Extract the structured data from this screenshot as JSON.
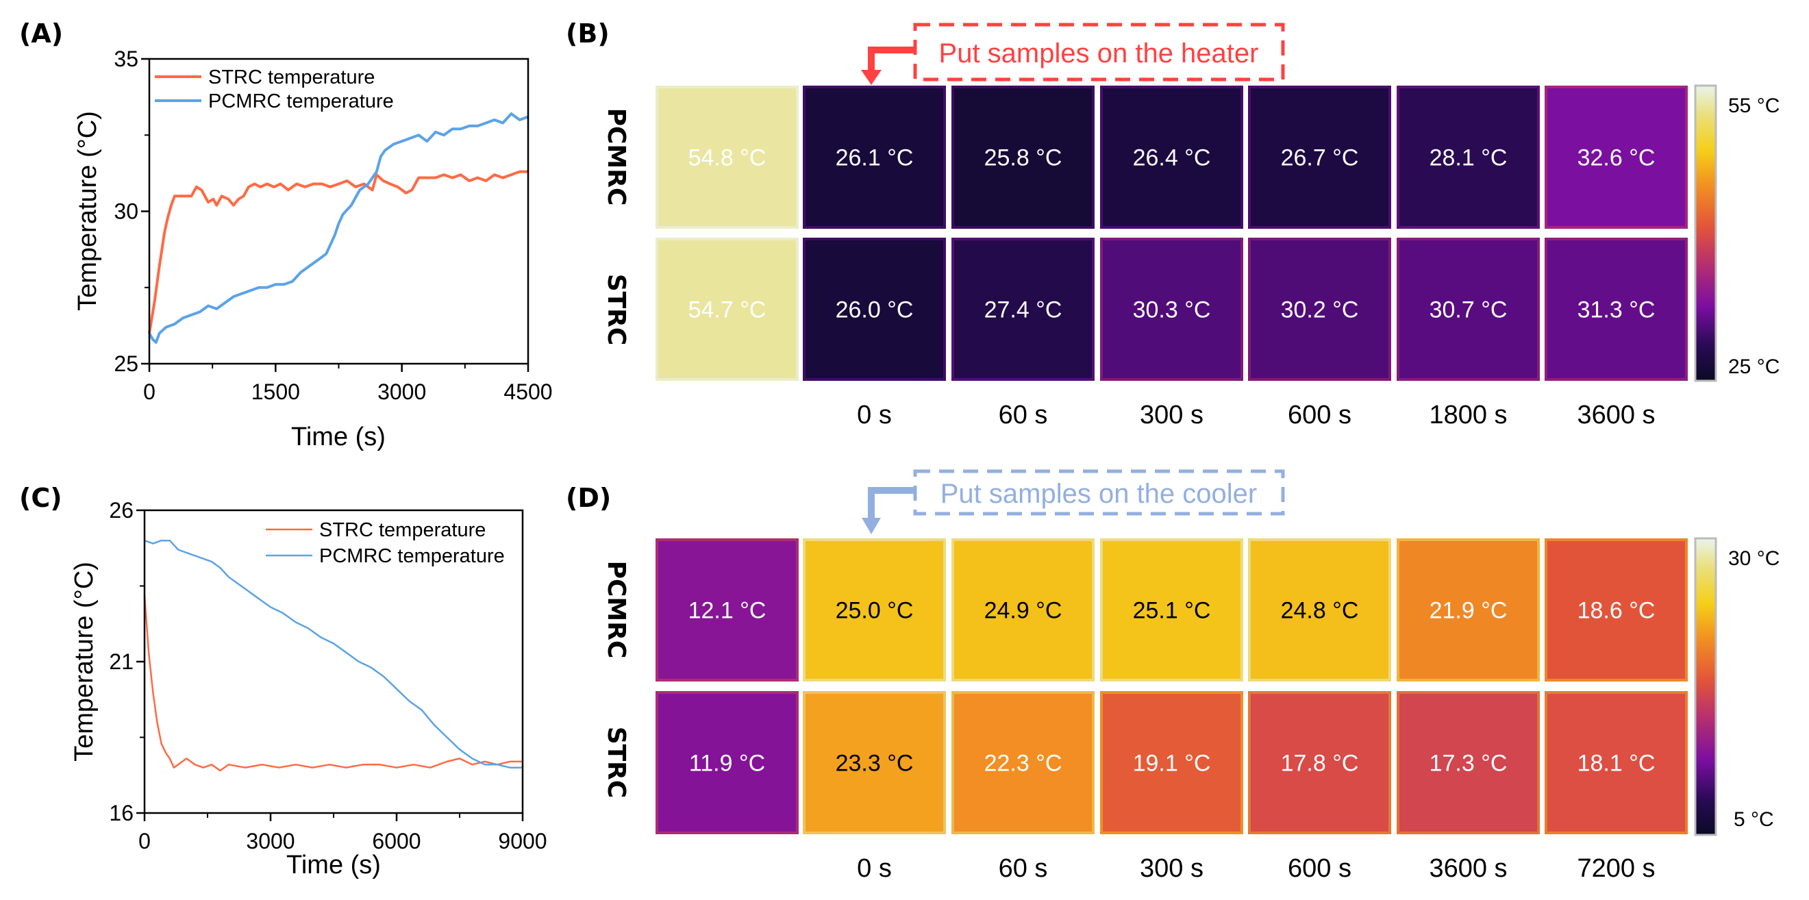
{
  "figure": {
    "panels": {
      "A": "(A)",
      "B": "(B)",
      "C": "(C)",
      "D": "(D)"
    }
  },
  "colors": {
    "strc_line": "#ff6a45",
    "pcmrc_line": "#5ba3e8",
    "heater_callout": "#ff4141",
    "cooler_callout": "#93afe0"
  },
  "chart_data": [
    {
      "id": "A",
      "type": "line",
      "title": "",
      "xlabel": "Time (s)",
      "ylabel": "Temperature (°C)",
      "xlim": [
        0,
        4500
      ],
      "ylim": [
        25,
        35
      ],
      "xticks": [
        0,
        1500,
        3000,
        4500
      ],
      "yticks": [
        25,
        30,
        35
      ],
      "legend": "top-left",
      "grid": false,
      "series": [
        {
          "name": "STRC temperature",
          "color": "#ff6a45",
          "x": [
            0,
            60,
            120,
            180,
            220,
            260,
            300,
            400,
            500,
            560,
            620,
            700,
            760,
            800,
            860,
            940,
            1000,
            1060,
            1120,
            1180,
            1250,
            1320,
            1400,
            1480,
            1560,
            1650,
            1750,
            1850,
            1950,
            2050,
            2150,
            2250,
            2350,
            2450,
            2550,
            2650,
            2700,
            2780,
            2860,
            2950,
            3050,
            3120,
            3200,
            3300,
            3400,
            3500,
            3600,
            3700,
            3800,
            3900,
            4000,
            4100,
            4200,
            4300,
            4400,
            4500
          ],
          "y": [
            26.0,
            27.0,
            28.2,
            29.3,
            29.8,
            30.2,
            30.5,
            30.5,
            30.5,
            30.8,
            30.7,
            30.3,
            30.4,
            30.2,
            30.5,
            30.4,
            30.2,
            30.4,
            30.5,
            30.8,
            30.9,
            30.8,
            30.9,
            30.8,
            30.9,
            30.7,
            30.9,
            30.8,
            30.9,
            30.9,
            30.8,
            30.9,
            31.0,
            30.8,
            30.9,
            30.7,
            31.2,
            31.0,
            30.9,
            30.8,
            30.6,
            30.7,
            31.1,
            31.1,
            31.1,
            31.2,
            31.1,
            31.2,
            31.0,
            31.1,
            31.0,
            31.2,
            31.1,
            31.2,
            31.3,
            31.3
          ]
        },
        {
          "name": "PCMRC temperature",
          "color": "#5ba3e8",
          "x": [
            0,
            40,
            80,
            120,
            200,
            300,
            400,
            500,
            600,
            700,
            800,
            900,
            1000,
            1100,
            1200,
            1300,
            1400,
            1500,
            1600,
            1700,
            1800,
            1900,
            2000,
            2100,
            2200,
            2250,
            2300,
            2400,
            2500,
            2600,
            2700,
            2750,
            2800,
            2900,
            3000,
            3100,
            3200,
            3300,
            3400,
            3500,
            3600,
            3700,
            3800,
            3900,
            4000,
            4100,
            4200,
            4300,
            4400,
            4500
          ],
          "y": [
            26.0,
            25.8,
            25.7,
            26.0,
            26.2,
            26.3,
            26.5,
            26.6,
            26.7,
            26.9,
            26.8,
            27.0,
            27.2,
            27.3,
            27.4,
            27.5,
            27.5,
            27.6,
            27.6,
            27.7,
            28.0,
            28.2,
            28.4,
            28.6,
            29.2,
            29.6,
            29.9,
            30.2,
            30.7,
            30.9,
            31.3,
            31.8,
            32.0,
            32.2,
            32.3,
            32.4,
            32.5,
            32.3,
            32.6,
            32.5,
            32.7,
            32.7,
            32.8,
            32.8,
            32.9,
            33.0,
            32.9,
            33.2,
            33.0,
            33.1
          ]
        }
      ]
    },
    {
      "id": "C",
      "type": "line",
      "title": "",
      "xlabel": "Time (s)",
      "ylabel": "Temperature (°C)",
      "xlim": [
        0,
        9000
      ],
      "ylim": [
        16,
        26
      ],
      "xticks": [
        0,
        3000,
        6000,
        9000
      ],
      "yticks": [
        16,
        21,
        26
      ],
      "legend": "top-right",
      "grid": false,
      "series": [
        {
          "name": "STRC temperature",
          "color": "#ff6a45",
          "x": [
            0,
            100,
            200,
            300,
            400,
            500,
            600,
            700,
            800,
            900,
            1000,
            1200,
            1400,
            1600,
            1800,
            2000,
            2400,
            2800,
            3200,
            3600,
            4000,
            4400,
            4800,
            5200,
            5600,
            6000,
            6400,
            6800,
            7200,
            7500,
            7800,
            8100,
            8400,
            8700,
            9000
          ],
          "y": [
            23.2,
            21.3,
            20.0,
            19.0,
            18.3,
            18.0,
            17.8,
            17.5,
            17.6,
            17.7,
            17.8,
            17.6,
            17.5,
            17.6,
            17.4,
            17.6,
            17.5,
            17.6,
            17.5,
            17.6,
            17.5,
            17.6,
            17.5,
            17.6,
            17.6,
            17.5,
            17.6,
            17.5,
            17.7,
            17.8,
            17.6,
            17.7,
            17.6,
            17.7,
            17.7
          ]
        },
        {
          "name": "PCMRC temperature",
          "color": "#5ba3e8",
          "x": [
            0,
            200,
            400,
            600,
            800,
            1000,
            1200,
            1400,
            1600,
            1800,
            2000,
            2200,
            2400,
            2600,
            2800,
            3000,
            3300,
            3600,
            3900,
            4200,
            4500,
            4800,
            5100,
            5400,
            5700,
            6000,
            6300,
            6600,
            6900,
            7200,
            7500,
            7800,
            8100,
            8400,
            8700,
            9000
          ],
          "y": [
            25.0,
            24.9,
            25.0,
            25.0,
            24.7,
            24.6,
            24.5,
            24.4,
            24.3,
            24.1,
            23.8,
            23.6,
            23.4,
            23.2,
            23.0,
            22.8,
            22.6,
            22.3,
            22.1,
            21.8,
            21.6,
            21.3,
            21.0,
            20.8,
            20.5,
            20.1,
            19.7,
            19.4,
            18.9,
            18.5,
            18.1,
            17.8,
            17.6,
            17.6,
            17.5,
            17.5
          ]
        }
      ]
    }
  ],
  "thermal_panels": [
    {
      "id": "B",
      "callout": "Put samples on the heater",
      "rows": [
        "PCMRC",
        "STRC"
      ],
      "times": [
        "",
        "0 s",
        "60 s",
        "300 s",
        "600 s",
        "1800 s",
        "3600 s"
      ],
      "colorbar": {
        "max_label": "55 °C",
        "min_label": "25 °C",
        "max": 55,
        "min": 25
      },
      "cells": [
        [
          {
            "label": "54.8 °C",
            "value": 54.8,
            "text": "light"
          },
          {
            "label": "26.1 °C",
            "value": 26.1,
            "text": "light"
          },
          {
            "label": "25.8 °C",
            "value": 25.8,
            "text": "light"
          },
          {
            "label": "26.4 °C",
            "value": 26.4,
            "text": "light"
          },
          {
            "label": "26.7 °C",
            "value": 26.7,
            "text": "light"
          },
          {
            "label": "28.1 °C",
            "value": 28.1,
            "text": "light"
          },
          {
            "label": "32.6 °C",
            "value": 32.6,
            "text": "light"
          }
        ],
        [
          {
            "label": "54.7 °C",
            "value": 54.7,
            "text": "light"
          },
          {
            "label": "26.0 °C",
            "value": 26.0,
            "text": "light"
          },
          {
            "label": "27.4 °C",
            "value": 27.4,
            "text": "light"
          },
          {
            "label": "30.3 °C",
            "value": 30.3,
            "text": "light"
          },
          {
            "label": "30.2 °C",
            "value": 30.2,
            "text": "light"
          },
          {
            "label": "30.7 °C",
            "value": 30.7,
            "text": "light"
          },
          {
            "label": "31.3 °C",
            "value": 31.3,
            "text": "light"
          }
        ]
      ]
    },
    {
      "id": "D",
      "callout": "Put samples on the cooler",
      "rows": [
        "PCMRC",
        "STRC"
      ],
      "times": [
        "",
        "0 s",
        "60 s",
        "300 s",
        "600 s",
        "3600 s",
        "7200 s"
      ],
      "colorbar": {
        "max_label": "30 °C",
        "min_label": "5 °C",
        "max": 30,
        "min": 5
      },
      "cells": [
        [
          {
            "label": "12.1 °C",
            "value": 12.1,
            "text": "light"
          },
          {
            "label": "25.0 °C",
            "value": 25.0,
            "text": "dark"
          },
          {
            "label": "24.9 °C",
            "value": 24.9,
            "text": "dark"
          },
          {
            "label": "25.1 °C",
            "value": 25.1,
            "text": "dark"
          },
          {
            "label": "24.8 °C",
            "value": 24.8,
            "text": "dark"
          },
          {
            "label": "21.9 °C",
            "value": 21.9,
            "text": "light"
          },
          {
            "label": "18.6 °C",
            "value": 18.6,
            "text": "light"
          }
        ],
        [
          {
            "label": "11.9 °C",
            "value": 11.9,
            "text": "light"
          },
          {
            "label": "23.3 °C",
            "value": 23.3,
            "text": "dark"
          },
          {
            "label": "22.3 °C",
            "value": 22.3,
            "text": "light"
          },
          {
            "label": "19.1 °C",
            "value": 19.1,
            "text": "light"
          },
          {
            "label": "17.8 °C",
            "value": 17.8,
            "text": "light"
          },
          {
            "label": "17.3 °C",
            "value": 17.3,
            "text": "light"
          },
          {
            "label": "18.1 °C",
            "value": 18.1,
            "text": "light"
          }
        ]
      ]
    }
  ]
}
